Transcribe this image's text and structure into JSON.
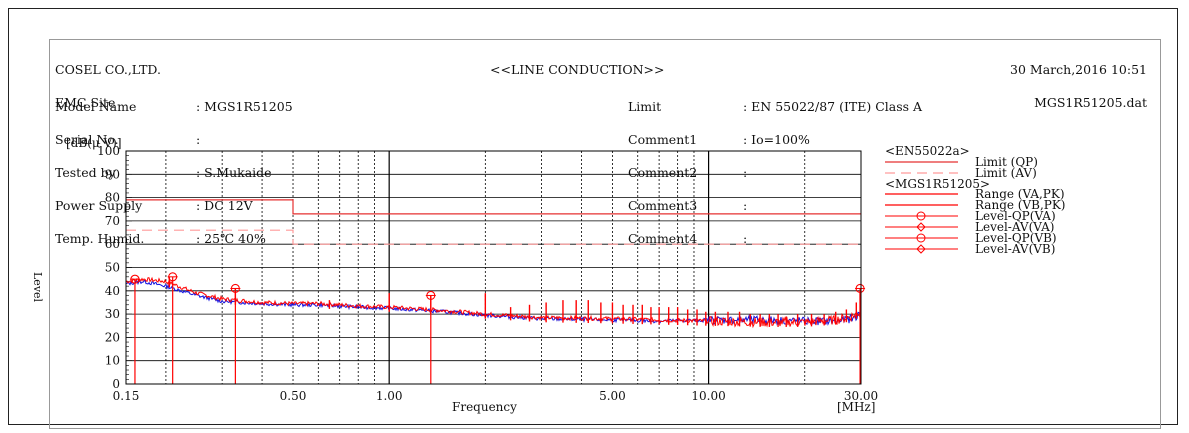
{
  "header": {
    "company": "COSEL CO.,LTD.",
    "site": "EMC Site",
    "title": "<<LINE CONDUCTION>>",
    "date": "30 March,2016 10:51",
    "file": "MGS1R51205.dat"
  },
  "info_left": {
    "labels": [
      "Model Name",
      "Serial No.",
      "Tested by",
      "Power Supply",
      "Temp. Humid."
    ],
    "values": [
      ": MGS1R51205",
      ":",
      ": S.Mukaide",
      ": DC 12V",
      ": 25℃ 40%"
    ]
  },
  "info_right": {
    "labels": [
      "Limit",
      "Comment1",
      "Comment2",
      "Comment3",
      "Comment4"
    ],
    "values": [
      ": EN 55022/87 (ITE) Class A",
      ": Io=100%",
      ":",
      ":",
      ":"
    ]
  },
  "colors": {
    "limit": "#e53030",
    "limit_av": "#ff9a9a",
    "trace_red": "#ff0000",
    "trace_blue": "#1010e0",
    "grid": "#000000"
  },
  "chart_data": {
    "type": "line",
    "x_scale": "log",
    "xlim": [
      0.15,
      30
    ],
    "ylim": [
      0,
      100
    ],
    "y_unit": "[dB(μ V)]",
    "ylabel": "Level",
    "xlabel": "Frequency",
    "x_unit": "[MHz]",
    "x_tick_labels": [
      "0.15",
      "0.50",
      "1.00",
      "5.00",
      "10.00",
      "30.00"
    ],
    "x_ticks": [
      0.15,
      0.5,
      1,
      5,
      10,
      30
    ],
    "y_ticks": [
      0,
      10,
      20,
      30,
      40,
      50,
      60,
      70,
      80,
      90,
      100
    ],
    "legend": {
      "group1": "<EN55022a>",
      "group2": "<MGS1R51205>",
      "entries": [
        "Limit (QP)",
        "Limit (AV)",
        "Range (VA,PK)",
        "Range (VB,PK)",
        "Level-QP(VA)",
        "Level-AV(VA)",
        "Level-QP(VB)",
        "Level-AV(VB)"
      ]
    },
    "limits": [
      {
        "name": "Limit (QP)",
        "points": [
          [
            0.15,
            79
          ],
          [
            0.5,
            79
          ],
          [
            0.5,
            73
          ],
          [
            30,
            73
          ]
        ]
      },
      {
        "name": "Limit (AV)",
        "points": [
          [
            0.15,
            66
          ],
          [
            0.5,
            66
          ],
          [
            0.5,
            60
          ],
          [
            30,
            60
          ]
        ]
      }
    ],
    "series": [
      {
        "name": "Range (VA,PK)",
        "points": [
          [
            0.15,
            44
          ],
          [
            0.17,
            45
          ],
          [
            0.2,
            44
          ],
          [
            0.25,
            39
          ],
          [
            0.3,
            36.5
          ],
          [
            0.4,
            35
          ],
          [
            0.5,
            34.5
          ],
          [
            0.6,
            34.5
          ],
          [
            0.8,
            33.5
          ],
          [
            1.0,
            33
          ],
          [
            1.5,
            31.5
          ],
          [
            2.0,
            30
          ],
          [
            3.0,
            28.5
          ],
          [
            5.0,
            28
          ],
          [
            7.0,
            27.5
          ],
          [
            10.0,
            27
          ],
          [
            15.0,
            26.5
          ],
          [
            20.0,
            26.5
          ],
          [
            25.0,
            27.5
          ],
          [
            28.0,
            29
          ],
          [
            30.0,
            31
          ]
        ]
      },
      {
        "name": "Range (VB,PK)",
        "points": [
          [
            0.15,
            43
          ],
          [
            0.17,
            44
          ],
          [
            0.2,
            42
          ],
          [
            0.25,
            38
          ],
          [
            0.3,
            35.5
          ],
          [
            0.4,
            34.5
          ],
          [
            0.5,
            34
          ],
          [
            0.6,
            34
          ],
          [
            0.8,
            33
          ],
          [
            1.0,
            32.5
          ],
          [
            1.5,
            31
          ],
          [
            2.0,
            29.5
          ],
          [
            3.0,
            28
          ],
          [
            5.0,
            27.5
          ],
          [
            7.0,
            27
          ],
          [
            10.0,
            27.5
          ],
          [
            15.0,
            27.5
          ],
          [
            20.0,
            27
          ],
          [
            25.0,
            27
          ],
          [
            28.0,
            28
          ],
          [
            30.0,
            30
          ]
        ]
      },
      {
        "name": "Spikes",
        "points": [
          [
            0.205,
            46
          ],
          [
            0.33,
            41
          ],
          [
            0.65,
            36
          ],
          [
            1.0,
            39
          ],
          [
            1.35,
            38
          ],
          [
            2.0,
            39
          ],
          [
            2.4,
            33
          ],
          [
            2.75,
            34
          ],
          [
            3.1,
            35
          ],
          [
            3.5,
            36
          ],
          [
            3.85,
            36
          ],
          [
            4.2,
            36
          ],
          [
            4.6,
            35
          ],
          [
            5.0,
            35
          ],
          [
            5.4,
            34
          ],
          [
            5.8,
            34
          ],
          [
            6.2,
            34
          ],
          [
            6.6,
            33
          ],
          [
            7.0,
            33
          ],
          [
            7.5,
            33
          ],
          [
            8.0,
            33
          ],
          [
            8.6,
            32
          ],
          [
            9.2,
            32
          ],
          [
            9.8,
            31
          ],
          [
            10.5,
            31
          ],
          [
            11.5,
            31
          ],
          [
            12.5,
            31
          ],
          [
            13.5,
            30
          ],
          [
            14.5,
            30
          ],
          [
            15.5,
            30
          ],
          [
            16.5,
            30
          ],
          [
            17.5,
            29
          ],
          [
            19.0,
            30
          ],
          [
            21.0,
            30
          ],
          [
            23.0,
            30
          ],
          [
            25.0,
            31
          ],
          [
            27.0,
            32
          ],
          [
            29.0,
            35
          ],
          [
            29.8,
            40
          ]
        ]
      },
      {
        "name": "Level-QP(VA)",
        "points": [
          [
            0.16,
            45
          ],
          [
            0.21,
            46
          ],
          [
            0.33,
            41
          ],
          [
            1.35,
            38
          ],
          [
            29.8,
            41
          ]
        ]
      }
    ]
  }
}
